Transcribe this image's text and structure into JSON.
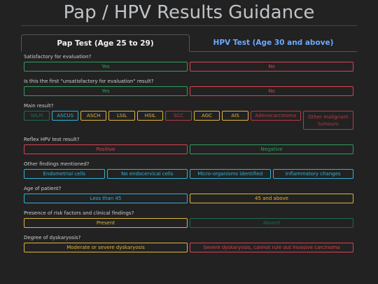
{
  "header": {
    "title": "Pap / HPV Results Guidance"
  },
  "tabs": [
    {
      "label": "Pap Test (Age 25 to 29)",
      "active": true,
      "color": "#f2f2f2"
    },
    {
      "label": "HPV Test (Age 30 and above)",
      "active": false,
      "color": "#6ea8fe"
    }
  ],
  "questions": [
    {
      "label": "Satisfactory for evaluation?",
      "options": [
        {
          "label": "Yes",
          "color": "#2f9e5f"
        },
        {
          "label": "No",
          "color": "#d9434f"
        }
      ]
    },
    {
      "label": "Is this the first \"unsatisfactory for evaluation\" result?",
      "options": [
        {
          "label": "Yes",
          "color": "#2f9e5f"
        },
        {
          "label": "No",
          "color": "#d9434f"
        }
      ]
    },
    {
      "label": "Main result?",
      "options": [
        {
          "label": "NILM",
          "color": "#1f6a55"
        },
        {
          "label": "ASCUS",
          "color": "#2fb3d6"
        },
        {
          "label": "ASCH",
          "color": "#e0b43a"
        },
        {
          "label": "LSIL",
          "color": "#e0b43a"
        },
        {
          "label": "HSIL",
          "color": "#e0b43a"
        },
        {
          "label": "SCC",
          "color": "#b83a44"
        },
        {
          "label": "AGC",
          "color": "#e0b43a"
        },
        {
          "label": "AIS",
          "color": "#e0b43a"
        },
        {
          "label": "Adenocarcinoma",
          "color": "#b83a44"
        },
        {
          "label": "Other malignant tumours",
          "color": "#b83a44"
        }
      ]
    },
    {
      "label": "Reflex HPV test result?",
      "options": [
        {
          "label": "Positive",
          "color": "#d9434f"
        },
        {
          "label": "Negative",
          "color": "#2f9e5f"
        }
      ]
    },
    {
      "label": "Other findings mentioned?",
      "options": [
        {
          "label": "Endometrial cells",
          "color": "#2fb3d6"
        },
        {
          "label": "No endocervical cells",
          "color": "#2fb3d6"
        },
        {
          "label": "Micro-organisms identified",
          "color": "#2fb3d6"
        },
        {
          "label": "Inflammatory changes",
          "color": "#2fb3d6"
        }
      ]
    },
    {
      "label": "Age of patient?",
      "options": [
        {
          "label": "Less than 45",
          "color": "#2fb3d6"
        },
        {
          "label": "45 and above",
          "color": "#e0b43a"
        }
      ]
    },
    {
      "label": "Presence of risk factors and clinical findings?",
      "options": [
        {
          "label": "Present",
          "color": "#e0b43a"
        },
        {
          "label": "Absent",
          "color": "#1f6a55"
        }
      ]
    },
    {
      "label": "Degree of dyskaryosis?",
      "options": [
        {
          "label": "Moderate or severe dyskaryosis",
          "color": "#e0b43a"
        },
        {
          "label": "Severe dyskaryosis, cannot rule out invasive carcinoma",
          "color": "#d9434f"
        }
      ]
    }
  ]
}
